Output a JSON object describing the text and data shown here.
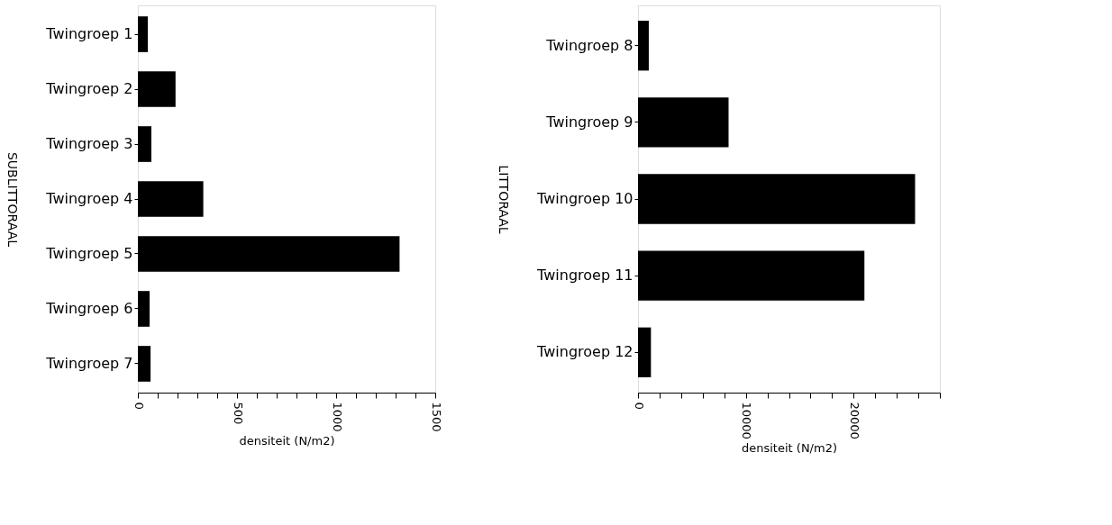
{
  "chart_data": [
    {
      "type": "bar",
      "orientation": "horizontal",
      "ylabel": "SUBLITTORAAL",
      "xlabel": "densiteit (N/m2)",
      "categories": [
        "Twingroep  1",
        "Twingroep  2",
        "Twingroep  3",
        "Twingroep  4",
        "Twingroep  5",
        "Twingroep  6",
        "Twingroep  7"
      ],
      "values": [
        50,
        190,
        68,
        330,
        1320,
        59,
        64
      ],
      "color": "#000000",
      "xlim": [
        0,
        1500
      ],
      "xticks": [
        0,
        {
          "value": 100,
          "label": null
        },
        {
          "value": 200,
          "label": null
        },
        {
          "value": 300,
          "label": null
        },
        {
          "value": 400,
          "label": null
        },
        500,
        {
          "value": 600,
          "label": null
        },
        {
          "value": 700,
          "label": null
        },
        {
          "value": 800,
          "label": null
        },
        {
          "value": 900,
          "label": null
        },
        1000,
        {
          "value": 1100,
          "label": null
        },
        {
          "value": 1200,
          "label": null
        },
        {
          "value": 1300,
          "label": null
        },
        {
          "value": 1400,
          "label": null
        },
        1500
      ],
      "grid": false
    },
    {
      "type": "bar",
      "orientation": "horizontal",
      "ylabel": "LITTORAAL",
      "xlabel": "densiteit (N/m2)",
      "categories": [
        "Twingroep  8",
        "Twingroep  9",
        "Twingroep  10",
        "Twingroep  11",
        "Twingroep  12"
      ],
      "values": [
        1000,
        8400,
        25700,
        21000,
        1200
      ],
      "color": "#000000",
      "xlim": [
        0,
        28000
      ],
      "xticks": [
        0,
        {
          "value": 2000,
          "label": null
        },
        {
          "value": 4000,
          "label": null
        },
        {
          "value": 6000,
          "label": null
        },
        {
          "value": 8000,
          "label": null
        },
        10000,
        {
          "value": 12000,
          "label": null
        },
        {
          "value": 14000,
          "label": null
        },
        {
          "value": 16000,
          "label": null
        },
        {
          "value": 18000,
          "label": null
        },
        20000,
        {
          "value": 22000,
          "label": null
        },
        {
          "value": 24000,
          "label": null
        },
        {
          "value": 26000,
          "label": null
        },
        {
          "value": 28000,
          "label": null
        }
      ],
      "grid": false
    }
  ]
}
